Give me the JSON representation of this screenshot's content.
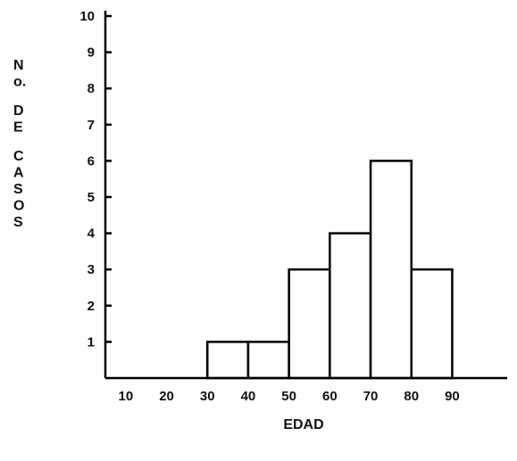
{
  "chart_data": {
    "type": "bar",
    "histogram": true,
    "bins": [
      {
        "from": 30,
        "to": 40,
        "value": 1
      },
      {
        "from": 40,
        "to": 50,
        "value": 1
      },
      {
        "from": 50,
        "to": 60,
        "value": 3
      },
      {
        "from": 60,
        "to": 70,
        "value": 4
      },
      {
        "from": 70,
        "to": 80,
        "value": 6
      },
      {
        "from": 80,
        "to": 90,
        "value": 3
      }
    ],
    "x_ticks": [
      "10",
      "20",
      "30",
      "40",
      "50",
      "60",
      "70",
      "80",
      "90"
    ],
    "y_ticks": [
      "1",
      "2",
      "3",
      "4",
      "5",
      "6",
      "7",
      "8",
      "9",
      "10"
    ],
    "xlabel": "EDAD",
    "ylabel": "No. DE CASOS",
    "ylabel_lines": [
      "N",
      "o.",
      "",
      "D",
      "E",
      "",
      "C",
      "A",
      "S",
      "O",
      "S"
    ],
    "ylim": [
      0,
      10
    ],
    "grid": false,
    "colors": {
      "bar_fill": "#ffffff",
      "stroke": "#000000"
    }
  }
}
